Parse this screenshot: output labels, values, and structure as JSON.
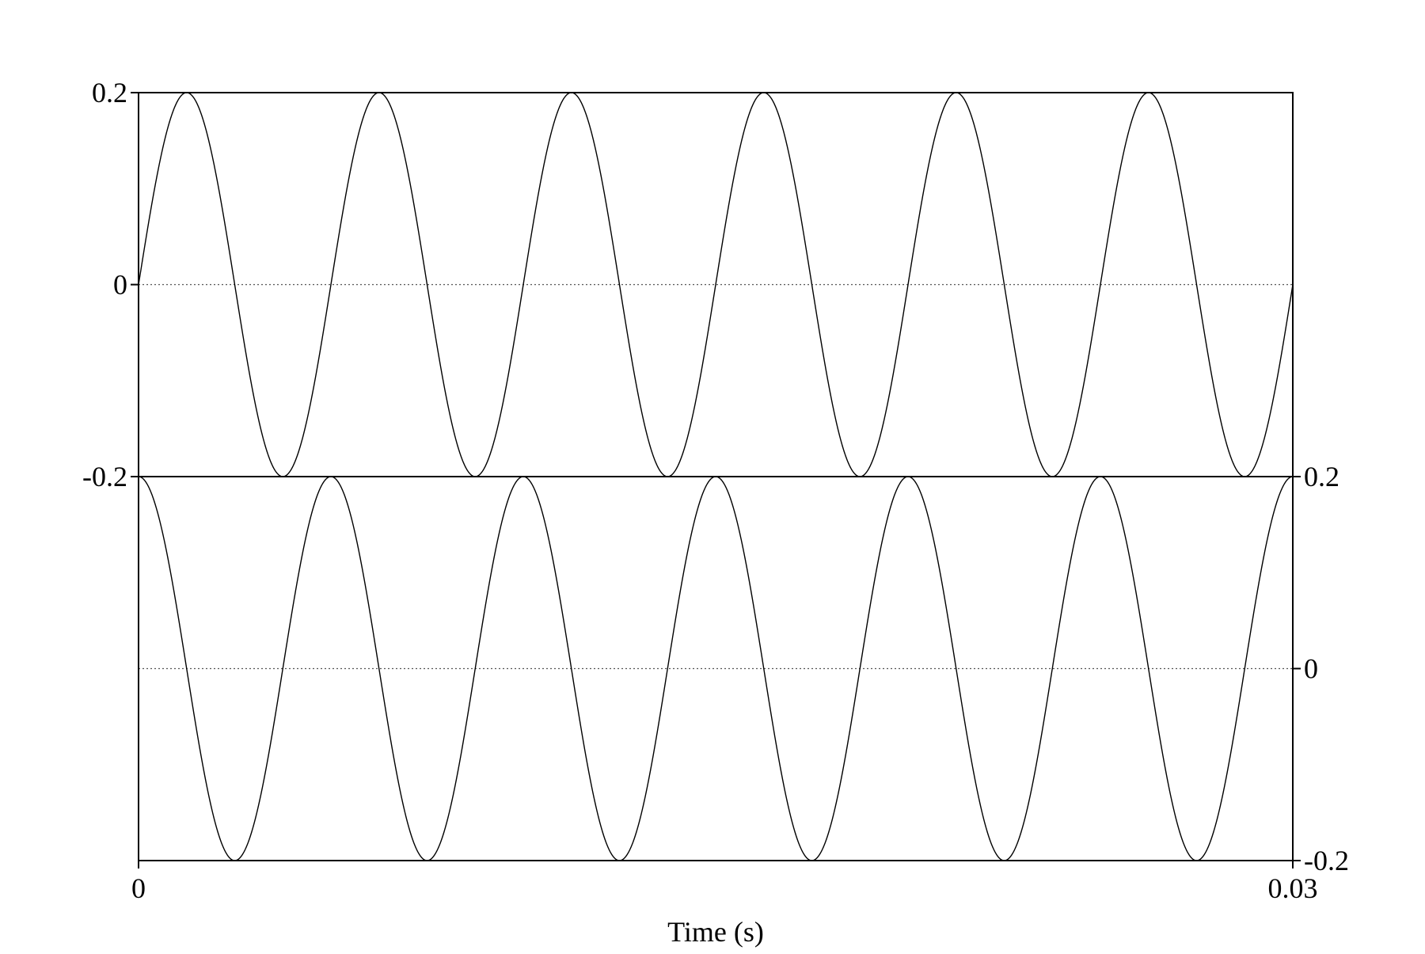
{
  "chart_data": {
    "type": "line",
    "title": "",
    "xlabel": "Time (s)",
    "xlim": [
      0,
      0.03
    ],
    "x_ticks": [
      "0",
      "0.03"
    ],
    "grid": false,
    "colors": {
      "line": "#000000",
      "zero_line": "#555555",
      "frame": "#000000",
      "background": "#ffffff"
    },
    "channels": [
      {
        "ylim": [
          -0.2,
          0.2
        ],
        "y_ticks": [
          "0.2",
          "0",
          "-0.2"
        ],
        "y_axis_side": "left",
        "waveform": {
          "function": "sine",
          "amplitude": 0.2,
          "frequency_hz": 200,
          "phase_deg": 0
        }
      },
      {
        "ylim": [
          -0.2,
          0.2
        ],
        "y_ticks": [
          "0.2",
          "0",
          "-0.2"
        ],
        "y_axis_side": "right",
        "waveform": {
          "function": "cosine",
          "amplitude": 0.2,
          "frequency_hz": 200,
          "phase_deg": 0
        }
      }
    ]
  }
}
